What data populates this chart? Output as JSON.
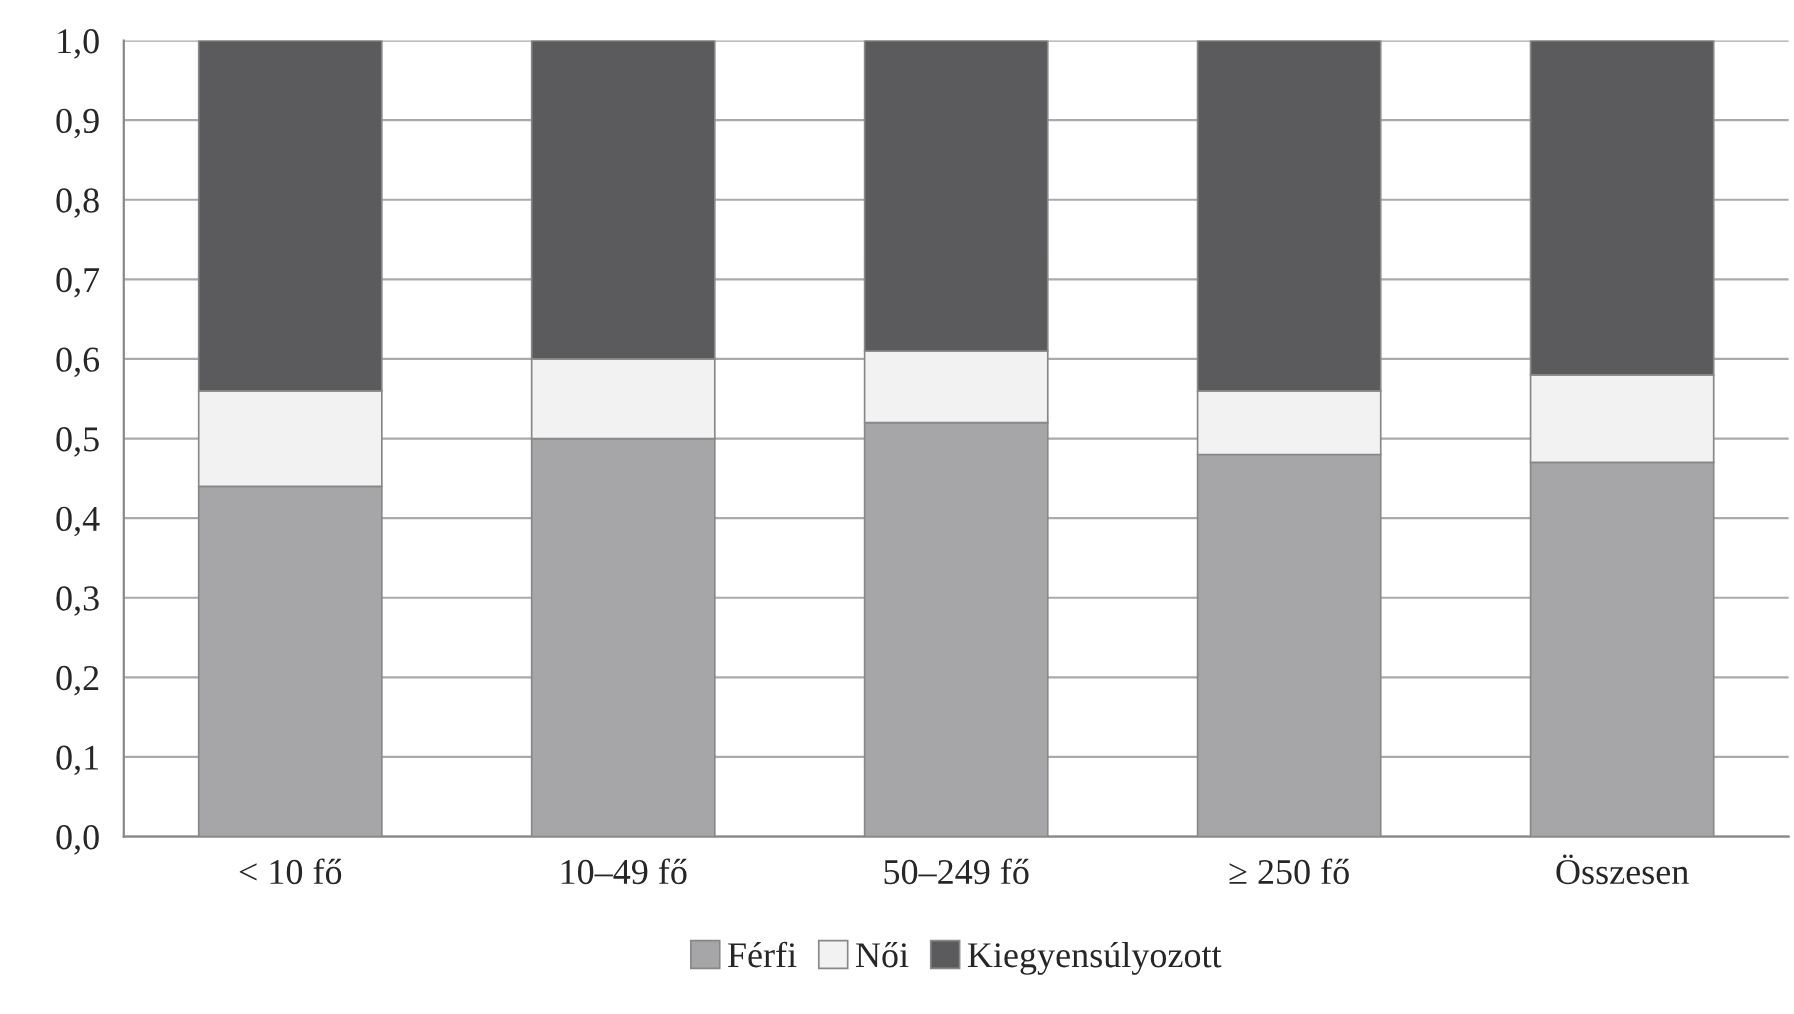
{
  "chart_data": {
    "type": "bar",
    "stacked": true,
    "categories": [
      "< 10 fő",
      "10–49 fő",
      "50–249 fő",
      "≥ 250 fő",
      "Összesen"
    ],
    "series": [
      {
        "name": "Férfi",
        "color": "#a6a5a7",
        "values": [
          0.44,
          0.5,
          0.52,
          0.48,
          0.47
        ]
      },
      {
        "name": "Női",
        "color": "#f2f2f2",
        "values": [
          0.12,
          0.1,
          0.09,
          0.08,
          0.11
        ]
      },
      {
        "name": "Kiegyensúlyozott",
        "color": "#5b5a5c",
        "values": [
          0.44,
          0.4,
          0.39,
          0.44,
          0.42
        ]
      }
    ],
    "ylim": [
      0,
      1
    ],
    "yticks": [
      {
        "value": 0,
        "label": "0,0"
      },
      {
        "value": 0.1,
        "label": "0,1"
      },
      {
        "value": 0.2,
        "label": "0,2"
      },
      {
        "value": 0.3,
        "label": "0,3"
      },
      {
        "value": 0.4,
        "label": "0,4"
      },
      {
        "value": 0.5,
        "label": "0,5"
      },
      {
        "value": 0.6,
        "label": "0,6"
      },
      {
        "value": 0.7,
        "label": "0,7"
      },
      {
        "value": 0.8,
        "label": "0,8"
      },
      {
        "value": 0.9,
        "label": "0,9"
      },
      {
        "value": 1,
        "label": "1,0"
      }
    ],
    "grid": "y",
    "legend": "bottom"
  }
}
